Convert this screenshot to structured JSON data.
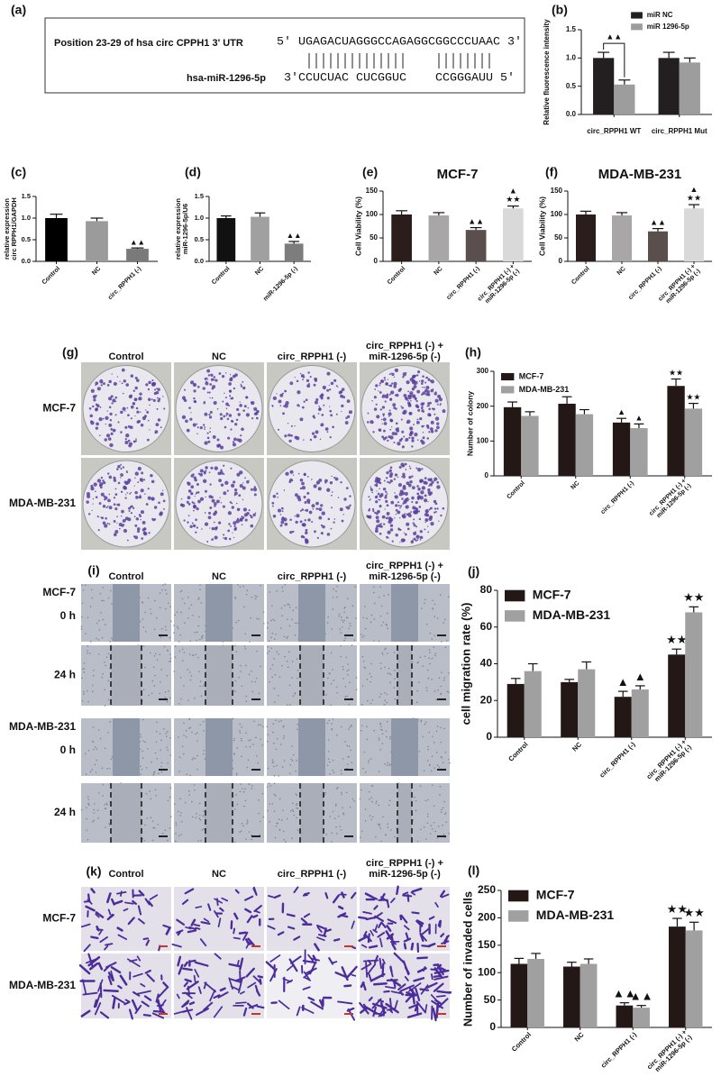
{
  "sequence_panel": {
    "label": "(a)",
    "title": "Position 23-29 of hsa circ CPPH1 3' UTR",
    "target": "5' UGAGACUAGGGCCAGAGGCGGCCCUAAC 3'",
    "mirna_name": "hsa-miR-1296-5p",
    "mirna": [
      "3'CCUCUAC",
      "CUCGGUC",
      "CCGGGAUU 5'"
    ]
  },
  "image_panels": [
    {
      "label": "(g)",
      "columns": [
        "Control",
        "NC",
        "circ_RPPH1 (-)",
        "circ_RPPH1 (-) +\nmiR-1296-5p (-)"
      ],
      "rows": [
        "MCF-7",
        "MDA-MB-231"
      ]
    },
    {
      "label": "(i)",
      "columns": [
        "Control",
        "NC",
        "circ_RPPH1 (-)",
        "circ_RPPH1 (-) +\nmiR-1296-5p (-)"
      ],
      "rows": [
        {
          "line": "MCF-7",
          "time": "0 h"
        },
        {
          "time": "24 h"
        },
        {
          "line": "MDA-MB-231",
          "time": "0 h"
        },
        {
          "time": "24 h"
        }
      ]
    },
    {
      "label": "(k)",
      "columns": [
        "Control",
        "NC",
        "circ_RPPH1 (-)",
        "circ_RPPH1 (-) +\nmiR-1296-5p (-)"
      ],
      "rows": [
        "MCF-7",
        "MDA-MB-231"
      ]
    }
  ],
  "chart_data": [
    {
      "type": "bar",
      "panel": "(b)",
      "ylabel": "Relative fluorescence intensity",
      "categories": [
        "circ_RPPH1 WT",
        "circ_RPPH1 Mut"
      ],
      "rotated_categories": false,
      "series": [
        {
          "name": "miR NC",
          "color": "#231f20",
          "values": [
            1.0,
            1.0
          ],
          "errors": [
            0.1,
            0.1
          ]
        },
        {
          "name": "miR 1296-5p",
          "color": "#9d9d9d",
          "values": [
            0.53,
            0.92
          ],
          "errors": [
            0.08,
            0.08
          ]
        }
      ],
      "bracket_label": "▲▲",
      "legend": "upper right",
      "ylim": [
        0,
        1.5
      ],
      "yticks": [
        {
          "value": 0,
          "label": "0.0"
        },
        0.5,
        {
          "value": 1,
          "label": "1.0"
        },
        {
          "value": 1.5,
          "label": "1.5"
        }
      ]
    },
    {
      "type": "bar",
      "panel": "(c)",
      "ylabel": "relative expression\ncirc RPPH1/GAPDH",
      "categories": [
        "Control",
        "NC",
        "circ_RPPH1 (-)"
      ],
      "rotated_categories": true,
      "series": [
        {
          "colors": [
            "#000000",
            "#9b9b9b",
            "#7a7a7a"
          ],
          "values": [
            1.0,
            0.93,
            0.29
          ],
          "errors": [
            0.09,
            0.07,
            0.02
          ],
          "markers": [
            null,
            null,
            "▲▲"
          ]
        }
      ],
      "ylim": [
        0,
        1.5
      ],
      "yticks": [
        {
          "value": 0,
          "label": "0.0"
        },
        0.5,
        {
          "value": 1,
          "label": "1.0"
        },
        {
          "value": 1.5,
          "label": "1.5"
        }
      ]
    },
    {
      "type": "bar",
      "panel": "(d)",
      "ylabel": "relative expression\nmiR-1296-5p/U6",
      "categories": [
        "Control",
        "NC",
        "miR-1296-5p (-)"
      ],
      "rotated_categories": true,
      "series": [
        {
          "colors": [
            "#111111",
            "#a0a0a0",
            "#7d7d7d"
          ],
          "values": [
            1.0,
            1.03,
            0.41
          ],
          "errors": [
            0.05,
            0.09,
            0.05
          ],
          "markers": [
            null,
            null,
            "▲▲"
          ]
        }
      ],
      "ylim": [
        0,
        1.5
      ],
      "yticks": [
        {
          "value": 0,
          "label": "0.0"
        },
        0.5,
        {
          "value": 1,
          "label": "1.0"
        },
        {
          "value": 1.5,
          "label": "1.5"
        }
      ]
    },
    {
      "type": "bar",
      "panel": "(e)",
      "title": "MCF-7",
      "ylabel": "Cell Viability (%)",
      "categories": [
        "Control",
        "NC",
        "circ_RPPH1 (-)",
        "circ_RPPH1 (-) +\nmiR-1296-5p (-)"
      ],
      "rotated_categories": true,
      "series": [
        {
          "colors": [
            "#2a1d1b",
            "#a8a6a6",
            "#5a4f4d",
            "#d9d9d9"
          ],
          "values": [
            100,
            98,
            67,
            113
          ],
          "errors": [
            8,
            6,
            5,
            5
          ],
          "markers": [
            null,
            null,
            "▲▲",
            "▲\n★★"
          ]
        }
      ],
      "ylim": [
        0,
        150
      ],
      "yticks": [
        0,
        50,
        100,
        150
      ]
    },
    {
      "type": "bar",
      "panel": "(f)",
      "title": "MDA-MB-231",
      "ylabel": "Cell Viability (%)",
      "categories": [
        "Control",
        "NC",
        "circ_RPPH1 (-)",
        "circ_RPPH1 (-) +\nmiR-1296-5p (-)"
      ],
      "rotated_categories": true,
      "series": [
        {
          "colors": [
            "#2a1d1b",
            "#a8a6a6",
            "#5a4f4d",
            "#d9d9d9"
          ],
          "values": [
            100,
            98,
            64,
            113
          ],
          "errors": [
            7,
            6,
            6,
            8
          ],
          "markers": [
            null,
            null,
            "▲▲",
            "▲\n★★"
          ]
        }
      ],
      "ylim": [
        0,
        150
      ],
      "yticks": [
        0,
        50,
        100,
        150
      ]
    },
    {
      "type": "bar",
      "panel": "(h)",
      "ylabel": "Number of colony",
      "categories": [
        "Control",
        "NC",
        "circ_RPPH1 (-)",
        "circ_RPPH1 (-) +\nmiR-1296-5p (-)"
      ],
      "rotated_categories": true,
      "legend": "upper left",
      "series": [
        {
          "name": "MCF-7",
          "color": "#231815",
          "values": [
            197,
            207,
            153,
            258
          ],
          "errors": [
            15,
            20,
            12,
            20
          ],
          "markers": [
            null,
            null,
            "▲",
            "★★"
          ]
        },
        {
          "name": "MDA-MB-231",
          "color": "#a0a0a0",
          "values": [
            172,
            177,
            137,
            193
          ],
          "errors": [
            12,
            13,
            12,
            15
          ],
          "markers": [
            null,
            null,
            "▲",
            "★★"
          ]
        }
      ],
      "ylim": [
        0,
        300
      ],
      "yticks": [
        0,
        100,
        200,
        300
      ]
    },
    {
      "type": "bar",
      "panel": "(j)",
      "ylabel": "cell migration rate (%)",
      "categories": [
        "Control",
        "NC",
        "circ_RPPH1 (-)",
        "circ_RPPH1 (-) +\nmiR-1296-5p (-)"
      ],
      "rotated_categories": true,
      "legend": "upper left",
      "series": [
        {
          "name": "MCF-7",
          "color": "#231815",
          "values": [
            29,
            30,
            22,
            45
          ],
          "errors": [
            3,
            1.5,
            3,
            3
          ],
          "markers": [
            null,
            null,
            "▲",
            "★★"
          ]
        },
        {
          "name": "MDA-MB-231",
          "color": "#a0a0a0",
          "values": [
            36,
            37,
            26,
            68
          ],
          "errors": [
            4,
            4,
            2,
            3
          ],
          "markers": [
            null,
            null,
            "▲",
            "★★"
          ]
        }
      ],
      "ylim": [
        0,
        80
      ],
      "yticks": [
        0,
        20,
        40,
        60,
        80
      ]
    },
    {
      "type": "bar",
      "panel": "(l)",
      "ylabel": "Number of invaded cells",
      "categories": [
        "Control",
        "NC",
        "circ_RPPH1 (-)",
        "circ_RPPH1 (-) +\nmiR-1296-5p (-)"
      ],
      "rotated_categories": true,
      "legend": "upper left",
      "series": [
        {
          "name": "MCF-7",
          "color": "#231815",
          "values": [
            116,
            111,
            40,
            184
          ],
          "errors": [
            10,
            8,
            5,
            15
          ],
          "markers": [
            null,
            null,
            "▲▲",
            "★★"
          ]
        },
        {
          "name": "MDA-MB-231",
          "color": "#a0a0a0",
          "values": [
            125,
            116,
            36,
            177
          ],
          "errors": [
            10,
            9,
            4,
            15
          ],
          "markers": [
            null,
            null,
            "▲▲",
            "★★"
          ]
        }
      ],
      "ylim": [
        0,
        250
      ],
      "yticks": [
        0,
        50,
        100,
        150,
        200,
        250
      ]
    }
  ]
}
